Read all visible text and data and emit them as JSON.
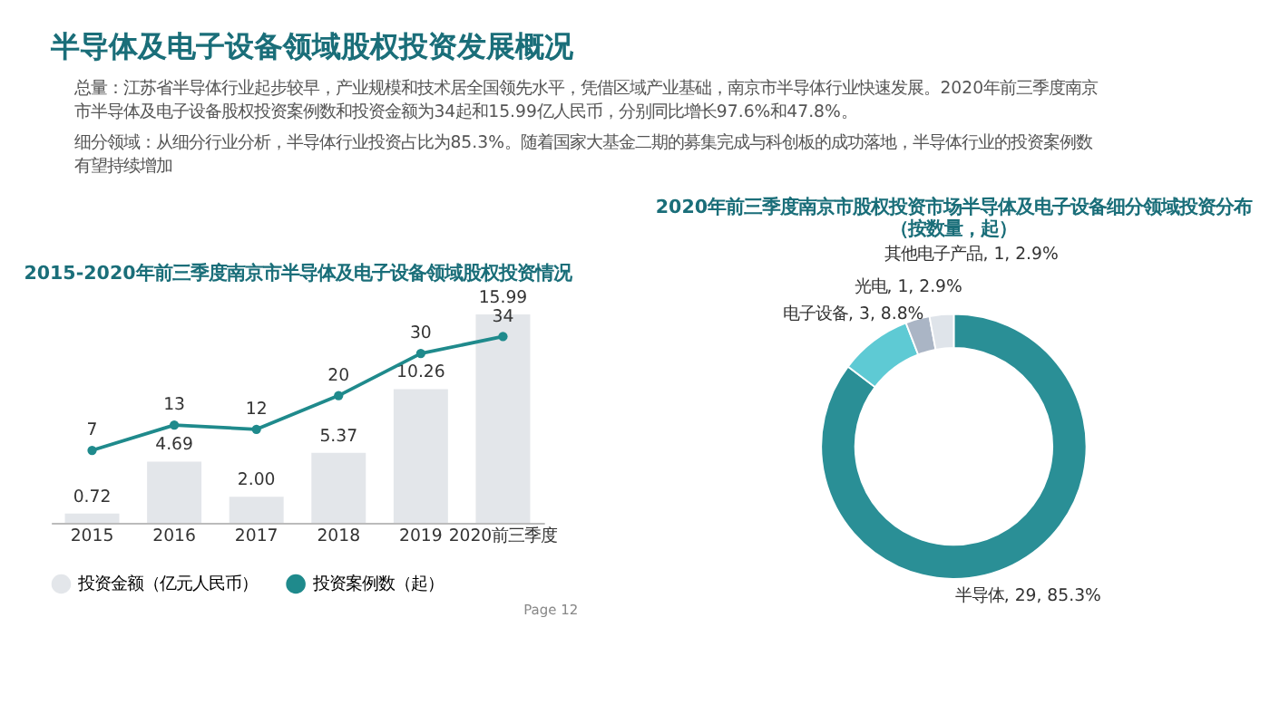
{
  "chart_data": [
    {
      "type": "other",
      "title": "半导体及电子设备领域股权投资发展概况",
      "annotations": [
        "总量：江苏省半导体行业起步较早，产业规模和技术居全国领先水平，凭借区域产业基础，南京市半导体行业快速发展。2020年前三季度南京市半导体及电子设备股权投资案例数和投资金额为34起和15.99亿人民币，分别同比增长97.6%和47.8%。",
        "细分领域：从细分行业分析，半导体行业投资占比为85.3%。随着国家大基金二期的募集完成与科创板的成功落地，半导体行业的投资案例数有望持续增加"
      ]
    },
    {
      "type": "bar",
      "title": "2015-2020年前三季度南京市半导体及电子设备领域股权投资情况",
      "categories": [
        "2015",
        "2016",
        "2017",
        "2018",
        "2019",
        "2020前三季度"
      ],
      "series": [
        {
          "name": "投资金额（亿元人民币）",
          "type": "bar",
          "color": "#e3e6ea",
          "values": [
            0.72,
            4.69,
            2.0,
            5.37,
            10.26,
            15.99
          ],
          "value_labels": [
            "0.72",
            "4.69",
            "2.00",
            "5.37",
            "10.26",
            "15.99"
          ]
        },
        {
          "name": "投资案例数（起）",
          "type": "line",
          "axis": "y2",
          "color": "#1f8a8c",
          "marker": "circle",
          "values": [
            7,
            13,
            12,
            20,
            30,
            34
          ]
        }
      ],
      "data_labels": true,
      "legend": "bottom",
      "grid": false,
      "tick_labels": "x",
      "annotations": [
        "Page 12"
      ]
    },
    {
      "type": "donut",
      "title": "2020年前三季度南京市股权投资市场半导体及电子设备细分领域投资分布（按数量，起）",
      "categories": [
        "半导体",
        "电子设备",
        "光电",
        "其他电子产品"
      ],
      "values": [
        29,
        3,
        1,
        1
      ],
      "colors": [
        "#2a8f96",
        "#5ecad4",
        "#aab5c5",
        "#dfe4ea"
      ],
      "value_labels": [
        "29, 85.3%",
        "3, 8.8%",
        "1, 2.9%",
        "1, 2.9%"
      ],
      "legend": false
    }
  ]
}
